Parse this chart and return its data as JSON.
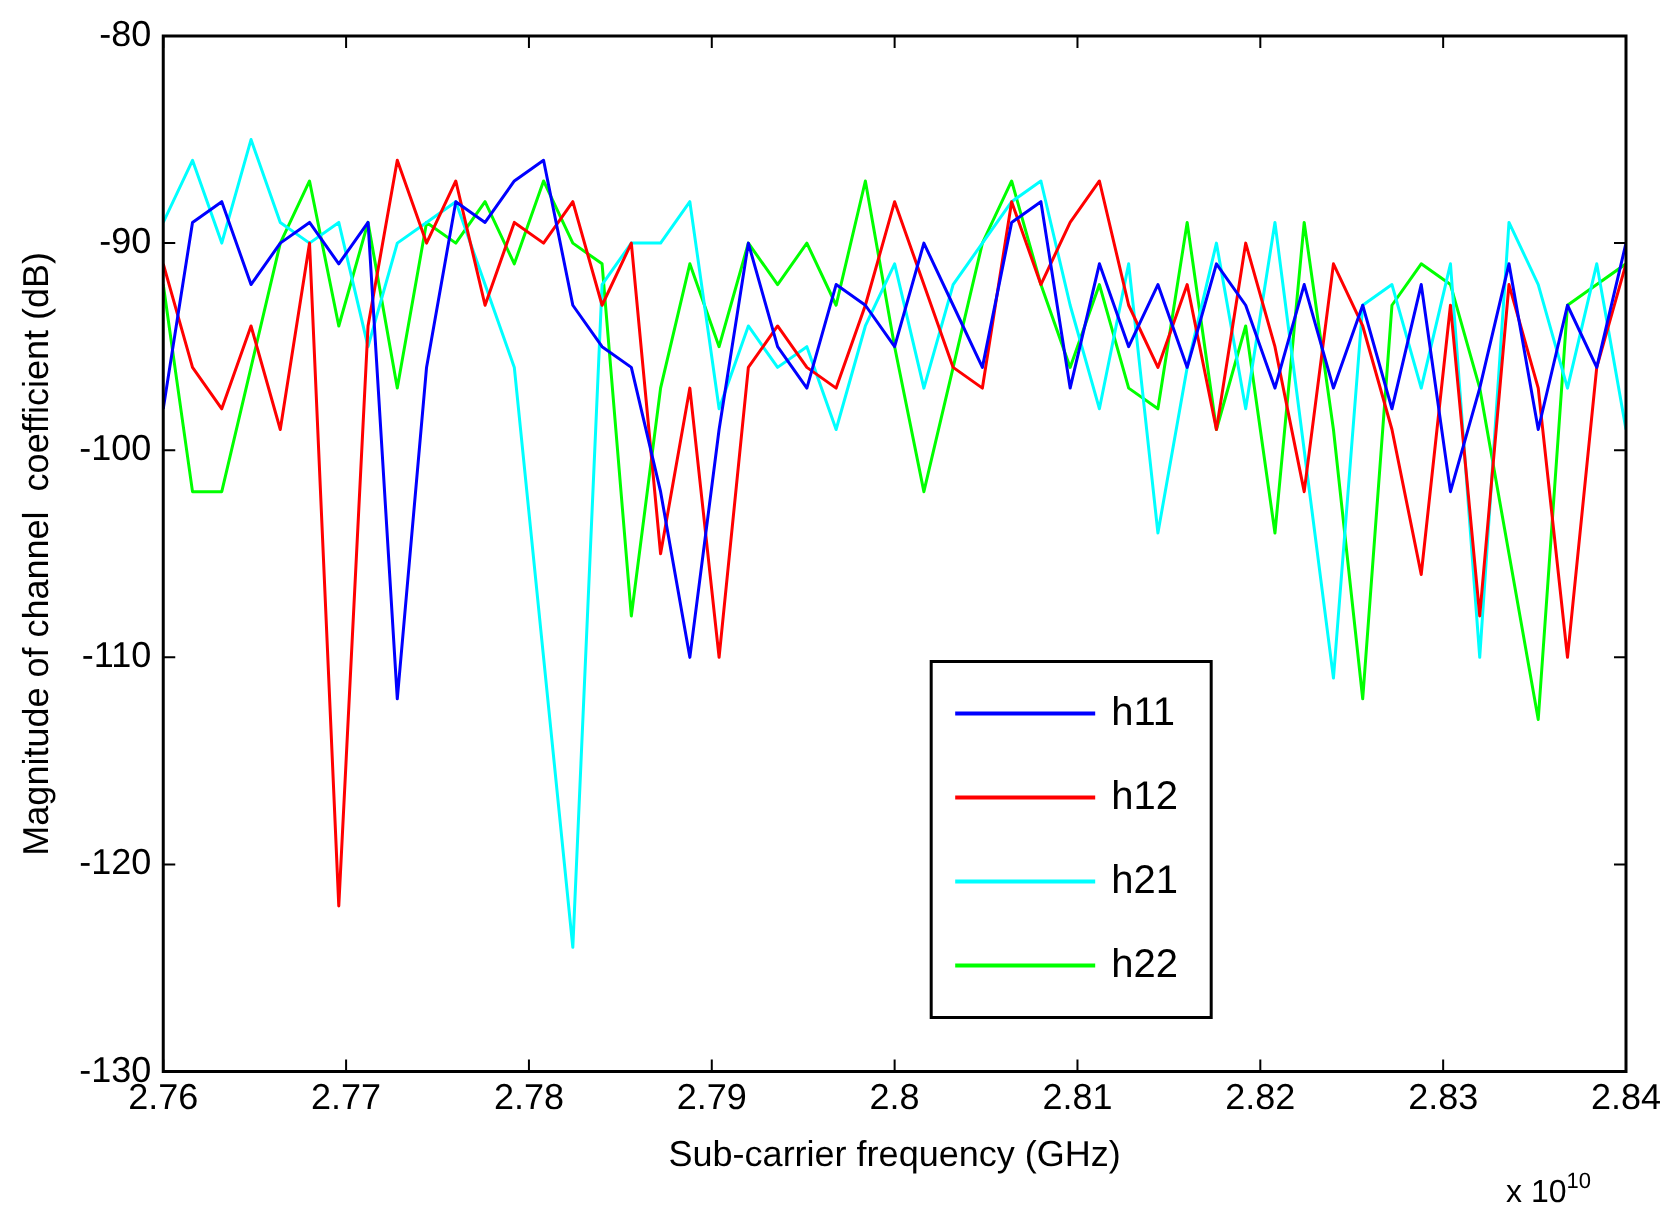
{
  "chart_data": {
    "type": "line",
    "xlabel": "Sub-carrier frequency (GHz)",
    "ylabel": "Magnitude of channel  coefficient (dB)",
    "annotations": [
      "x 10$^{10}$"
    ],
    "x": [
      2.76,
      2.7616,
      2.7632,
      2.7648,
      2.7664,
      2.768,
      2.7696,
      2.7712,
      2.7728,
      2.7744,
      2.776,
      2.7776,
      2.7792,
      2.7808,
      2.7824,
      2.784,
      2.7856,
      2.7872,
      2.7888,
      2.7904,
      2.792,
      2.7936,
      2.7952,
      2.7968,
      2.7984,
      2.8,
      2.8016,
      2.8032,
      2.8048,
      2.8064,
      2.808,
      2.8096,
      2.8112,
      2.8128,
      2.8144,
      2.816,
      2.8176,
      2.8192,
      2.8208,
      2.8224,
      2.824,
      2.8256,
      2.8272,
      2.8288,
      2.8304,
      2.832,
      2.8336,
      2.8352,
      2.8368,
      2.8384,
      2.84
    ],
    "series": [
      {
        "name": "h11",
        "color": "#0000ff",
        "values": [
          -98,
          -89,
          -88,
          -92,
          -90,
          -89,
          -91,
          -89,
          -112,
          -96,
          -88,
          -89,
          -87,
          -86,
          -93,
          -95,
          -96,
          -102,
          -110,
          -99,
          -90,
          -95,
          -97,
          -92,
          -93,
          -95,
          -90,
          -93,
          -96,
          -89,
          -88,
          -97,
          -91,
          -95,
          -92,
          -96,
          -91,
          -93,
          -97,
          -92,
          -97,
          -93,
          -98,
          -92,
          -102,
          -97,
          -91,
          -99,
          -93,
          -96,
          -90
        ]
      },
      {
        "name": "h12",
        "color": "#ff0000",
        "values": [
          -91,
          -96,
          -98,
          -94,
          -99,
          -90,
          -122,
          -94,
          -86,
          -90,
          -87,
          -93,
          -89,
          -90,
          -88,
          -93,
          -90,
          -105,
          -97,
          -110,
          -96,
          -94,
          -96,
          -97,
          -93,
          -88,
          -92,
          -96,
          -97,
          -88,
          -92,
          -89,
          -87,
          -93,
          -96,
          -92,
          -99,
          -90,
          -95,
          -102,
          -91,
          -94,
          -99,
          -106,
          -93,
          -108,
          -92,
          -97,
          -110,
          -96,
          -91
        ]
      },
      {
        "name": "h21",
        "color": "#00ffff",
        "values": [
          -89,
          -86,
          -90,
          -85,
          -89,
          -90,
          -89,
          -95,
          -90,
          -89,
          -88,
          -92,
          -96,
          -110,
          -124,
          -92,
          -90,
          -90,
          -88,
          -98,
          -94,
          -96,
          -95,
          -99,
          -94,
          -91,
          -97,
          -92,
          -90,
          -88,
          -87,
          -93,
          -98,
          -91,
          -104,
          -96,
          -90,
          -98,
          -89,
          -100,
          -111,
          -93,
          -92,
          -97,
          -91,
          -110,
          -89,
          -92,
          -97,
          -91,
          -99
        ]
      },
      {
        "name": "h22",
        "color": "#00ff00",
        "values": [
          -92,
          -102,
          -102,
          -96,
          -90,
          -87,
          -94,
          -89,
          -97,
          -89,
          -90,
          -88,
          -91,
          -87,
          -90,
          -91,
          -108,
          -97,
          -91,
          -95,
          -90,
          -92,
          -90,
          -93,
          -87,
          -95,
          -102,
          -96,
          -90,
          -87,
          -92,
          -96,
          -92,
          -97,
          -98,
          -89,
          -99,
          -94,
          -104,
          -89,
          -99,
          -112,
          -93,
          -91,
          -92,
          -97,
          -105,
          -113,
          -93,
          -92,
          -91
        ]
      }
    ],
    "xlim": [
      2.76,
      2.84
    ],
    "xticks": [
      2.76,
      2.77,
      2.78,
      2.79,
      2.8,
      2.81,
      2.82,
      2.83,
      2.84
    ],
    "ylim": [
      -130,
      -80
    ],
    "yticks": [
      -130,
      -120,
      -110,
      -100,
      -90,
      -80
    ],
    "legend": "bottom right",
    "grid": false,
    "marker": "none",
    "line_style": "solid"
  }
}
